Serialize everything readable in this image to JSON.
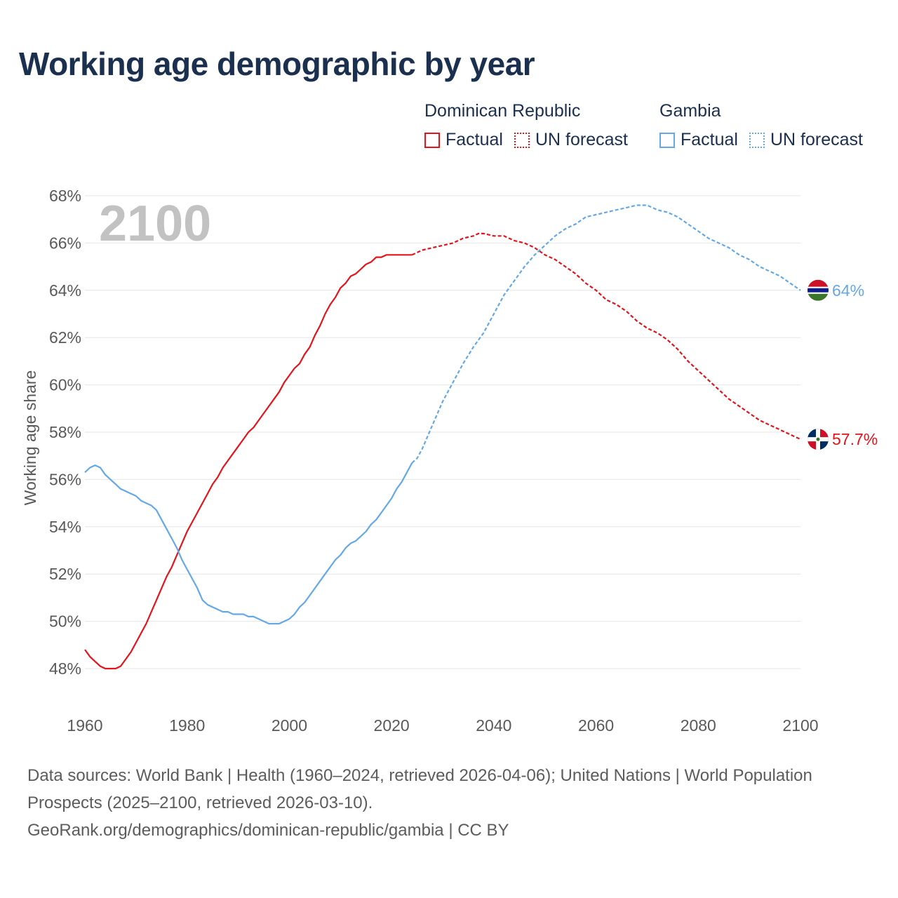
{
  "title": "Working age demographic by year",
  "legend": {
    "dr_country": "Dominican Republic",
    "gm_country": "Gambia",
    "factual_label": "Factual",
    "forecast_label": "UN forecast"
  },
  "footer": {
    "line1": "Data sources: World Bank | Health (1960–2024, retrieved 2026-04-06); United Nations | World Population Prospects (2025–2100, retrieved 2026-03-10).",
    "line2": "GeoRank.org/demographics/dominican-republic/gambia | CC BY"
  },
  "colors": {
    "dr": "#e3141c",
    "gm": "#64a9e6",
    "grid": "#e6e6e6",
    "axis_text": "#595959",
    "year_watermark": "#c2c2c2"
  },
  "chart_data": {
    "type": "line",
    "title": "Working age demographic by year",
    "year_label": "2100",
    "xlabel": "",
    "ylabel": "Working age share",
    "xlim": [
      1960,
      2100
    ],
    "ylim": [
      47,
      68
    ],
    "x_ticks": [
      1960,
      1980,
      2000,
      2020,
      2040,
      2060,
      2080,
      2100
    ],
    "y_ticks": [
      48,
      50,
      52,
      54,
      56,
      58,
      60,
      62,
      64,
      66,
      68
    ],
    "y_tick_suffix": "%",
    "factual_end_year": 2024,
    "series": [
      {
        "name": "Dominican Republic",
        "color": "#e3141c",
        "end_label": "57.7%",
        "end_icon": "dominican-republic-flag-icon",
        "points": [
          [
            1960,
            48.8
          ],
          [
            1961,
            48.5
          ],
          [
            1962,
            48.3
          ],
          [
            1963,
            48.1
          ],
          [
            1964,
            48.0
          ],
          [
            1965,
            48.0
          ],
          [
            1966,
            48.0
          ],
          [
            1967,
            48.1
          ],
          [
            1968,
            48.4
          ],
          [
            1969,
            48.7
          ],
          [
            1970,
            49.1
          ],
          [
            1971,
            49.5
          ],
          [
            1972,
            49.9
          ],
          [
            1973,
            50.4
          ],
          [
            1974,
            50.9
          ],
          [
            1975,
            51.4
          ],
          [
            1976,
            51.9
          ],
          [
            1977,
            52.3
          ],
          [
            1978,
            52.8
          ],
          [
            1979,
            53.3
          ],
          [
            1980,
            53.8
          ],
          [
            1981,
            54.2
          ],
          [
            1982,
            54.6
          ],
          [
            1983,
            55.0
          ],
          [
            1984,
            55.4
          ],
          [
            1985,
            55.8
          ],
          [
            1986,
            56.1
          ],
          [
            1987,
            56.5
          ],
          [
            1988,
            56.8
          ],
          [
            1989,
            57.1
          ],
          [
            1990,
            57.4
          ],
          [
            1991,
            57.7
          ],
          [
            1992,
            58.0
          ],
          [
            1993,
            58.2
          ],
          [
            1994,
            58.5
          ],
          [
            1995,
            58.8
          ],
          [
            1996,
            59.1
          ],
          [
            1997,
            59.4
          ],
          [
            1998,
            59.7
          ],
          [
            1999,
            60.1
          ],
          [
            2000,
            60.4
          ],
          [
            2001,
            60.7
          ],
          [
            2002,
            60.9
          ],
          [
            2003,
            61.3
          ],
          [
            2004,
            61.6
          ],
          [
            2005,
            62.1
          ],
          [
            2006,
            62.5
          ],
          [
            2007,
            63.0
          ],
          [
            2008,
            63.4
          ],
          [
            2009,
            63.7
          ],
          [
            2010,
            64.1
          ],
          [
            2011,
            64.3
          ],
          [
            2012,
            64.6
          ],
          [
            2013,
            64.7
          ],
          [
            2014,
            64.9
          ],
          [
            2015,
            65.1
          ],
          [
            2016,
            65.2
          ],
          [
            2017,
            65.4
          ],
          [
            2018,
            65.4
          ],
          [
            2019,
            65.5
          ],
          [
            2020,
            65.5
          ],
          [
            2021,
            65.5
          ],
          [
            2022,
            65.5
          ],
          [
            2023,
            65.5
          ],
          [
            2024,
            65.5
          ],
          [
            2025,
            65.6
          ],
          [
            2026,
            65.7
          ],
          [
            2028,
            65.8
          ],
          [
            2030,
            65.9
          ],
          [
            2032,
            66.0
          ],
          [
            2034,
            66.2
          ],
          [
            2036,
            66.3
          ],
          [
            2037,
            66.4
          ],
          [
            2038,
            66.4
          ],
          [
            2040,
            66.3
          ],
          [
            2042,
            66.3
          ],
          [
            2044,
            66.1
          ],
          [
            2046,
            66.0
          ],
          [
            2048,
            65.8
          ],
          [
            2050,
            65.5
          ],
          [
            2052,
            65.3
          ],
          [
            2054,
            65.0
          ],
          [
            2056,
            64.7
          ],
          [
            2058,
            64.3
          ],
          [
            2060,
            64.0
          ],
          [
            2062,
            63.6
          ],
          [
            2064,
            63.4
          ],
          [
            2066,
            63.1
          ],
          [
            2068,
            62.7
          ],
          [
            2070,
            62.4
          ],
          [
            2072,
            62.2
          ],
          [
            2074,
            61.9
          ],
          [
            2076,
            61.5
          ],
          [
            2078,
            61.0
          ],
          [
            2080,
            60.6
          ],
          [
            2082,
            60.2
          ],
          [
            2084,
            59.8
          ],
          [
            2086,
            59.4
          ],
          [
            2088,
            59.1
          ],
          [
            2090,
            58.8
          ],
          [
            2092,
            58.5
          ],
          [
            2094,
            58.3
          ],
          [
            2096,
            58.1
          ],
          [
            2098,
            57.9
          ],
          [
            2100,
            57.7
          ]
        ]
      },
      {
        "name": "Gambia",
        "color": "#64a9e6",
        "end_label": "64%",
        "end_icon": "gambia-flag-icon",
        "points": [
          [
            1960,
            56.3
          ],
          [
            1961,
            56.5
          ],
          [
            1962,
            56.6
          ],
          [
            1963,
            56.5
          ],
          [
            1964,
            56.2
          ],
          [
            1965,
            56.0
          ],
          [
            1966,
            55.8
          ],
          [
            1967,
            55.6
          ],
          [
            1968,
            55.5
          ],
          [
            1969,
            55.4
          ],
          [
            1970,
            55.3
          ],
          [
            1971,
            55.1
          ],
          [
            1972,
            55.0
          ],
          [
            1973,
            54.9
          ],
          [
            1974,
            54.7
          ],
          [
            1975,
            54.3
          ],
          [
            1976,
            53.9
          ],
          [
            1977,
            53.5
          ],
          [
            1978,
            53.1
          ],
          [
            1979,
            52.6
          ],
          [
            1980,
            52.2
          ],
          [
            1981,
            51.8
          ],
          [
            1982,
            51.4
          ],
          [
            1983,
            50.9
          ],
          [
            1984,
            50.7
          ],
          [
            1985,
            50.6
          ],
          [
            1986,
            50.5
          ],
          [
            1987,
            50.4
          ],
          [
            1988,
            50.4
          ],
          [
            1989,
            50.3
          ],
          [
            1990,
            50.3
          ],
          [
            1991,
            50.3
          ],
          [
            1992,
            50.2
          ],
          [
            1993,
            50.2
          ],
          [
            1994,
            50.1
          ],
          [
            1995,
            50.0
          ],
          [
            1996,
            49.9
          ],
          [
            1997,
            49.9
          ],
          [
            1998,
            49.9
          ],
          [
            1999,
            50.0
          ],
          [
            2000,
            50.1
          ],
          [
            2001,
            50.3
          ],
          [
            2002,
            50.6
          ],
          [
            2003,
            50.8
          ],
          [
            2004,
            51.1
          ],
          [
            2005,
            51.4
          ],
          [
            2006,
            51.7
          ],
          [
            2007,
            52.0
          ],
          [
            2008,
            52.3
          ],
          [
            2009,
            52.6
          ],
          [
            2010,
            52.8
          ],
          [
            2011,
            53.1
          ],
          [
            2012,
            53.3
          ],
          [
            2013,
            53.4
          ],
          [
            2014,
            53.6
          ],
          [
            2015,
            53.8
          ],
          [
            2016,
            54.1
          ],
          [
            2017,
            54.3
          ],
          [
            2018,
            54.6
          ],
          [
            2019,
            54.9
          ],
          [
            2020,
            55.2
          ],
          [
            2021,
            55.6
          ],
          [
            2022,
            55.9
          ],
          [
            2023,
            56.3
          ],
          [
            2024,
            56.7
          ],
          [
            2025,
            56.9
          ],
          [
            2026,
            57.3
          ],
          [
            2028,
            58.3
          ],
          [
            2030,
            59.3
          ],
          [
            2032,
            60.1
          ],
          [
            2034,
            60.9
          ],
          [
            2036,
            61.6
          ],
          [
            2038,
            62.2
          ],
          [
            2040,
            63.0
          ],
          [
            2042,
            63.8
          ],
          [
            2044,
            64.4
          ],
          [
            2046,
            65.0
          ],
          [
            2048,
            65.5
          ],
          [
            2050,
            65.9
          ],
          [
            2052,
            66.3
          ],
          [
            2054,
            66.6
          ],
          [
            2056,
            66.8
          ],
          [
            2058,
            67.1
          ],
          [
            2060,
            67.2
          ],
          [
            2062,
            67.3
          ],
          [
            2064,
            67.4
          ],
          [
            2066,
            67.5
          ],
          [
            2068,
            67.6
          ],
          [
            2070,
            67.6
          ],
          [
            2072,
            67.4
          ],
          [
            2074,
            67.3
          ],
          [
            2076,
            67.1
          ],
          [
            2078,
            66.8
          ],
          [
            2080,
            66.5
          ],
          [
            2082,
            66.2
          ],
          [
            2084,
            66.0
          ],
          [
            2086,
            65.8
          ],
          [
            2088,
            65.5
          ],
          [
            2090,
            65.3
          ],
          [
            2092,
            65.0
          ],
          [
            2094,
            64.8
          ],
          [
            2096,
            64.6
          ],
          [
            2098,
            64.3
          ],
          [
            2100,
            64.0
          ]
        ]
      }
    ]
  }
}
